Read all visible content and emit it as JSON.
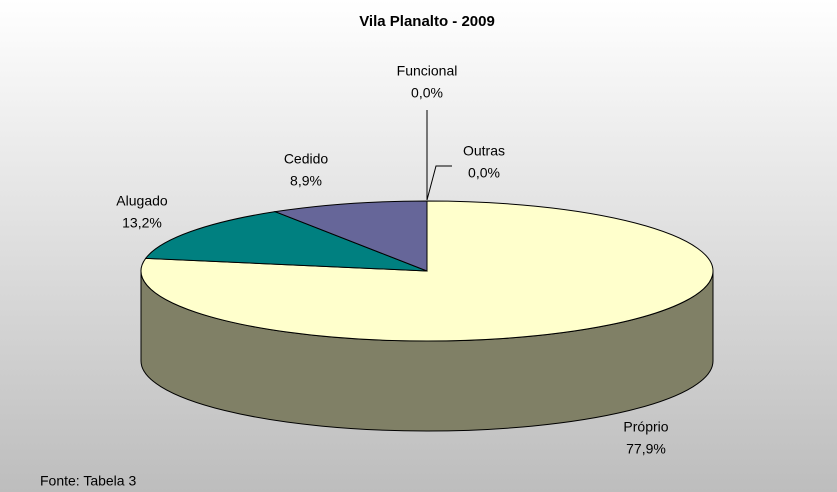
{
  "chart_data": {
    "type": "pie",
    "title": "Vila Planalto - 2009",
    "categories": [
      "Próprio",
      "Alugado",
      "Cedido",
      "Funcional",
      "Outras"
    ],
    "values": [
      77.9,
      13.2,
      8.9,
      0.0,
      0.0
    ],
    "value_labels": [
      "77,9%",
      "13,2%",
      "8,9%",
      "0,0%",
      "0,0%"
    ],
    "colors": [
      "#ffffcc",
      "#008080",
      "#666699",
      "#9999ff",
      "#993366"
    ],
    "note": "Fonte: Tabela 3"
  }
}
